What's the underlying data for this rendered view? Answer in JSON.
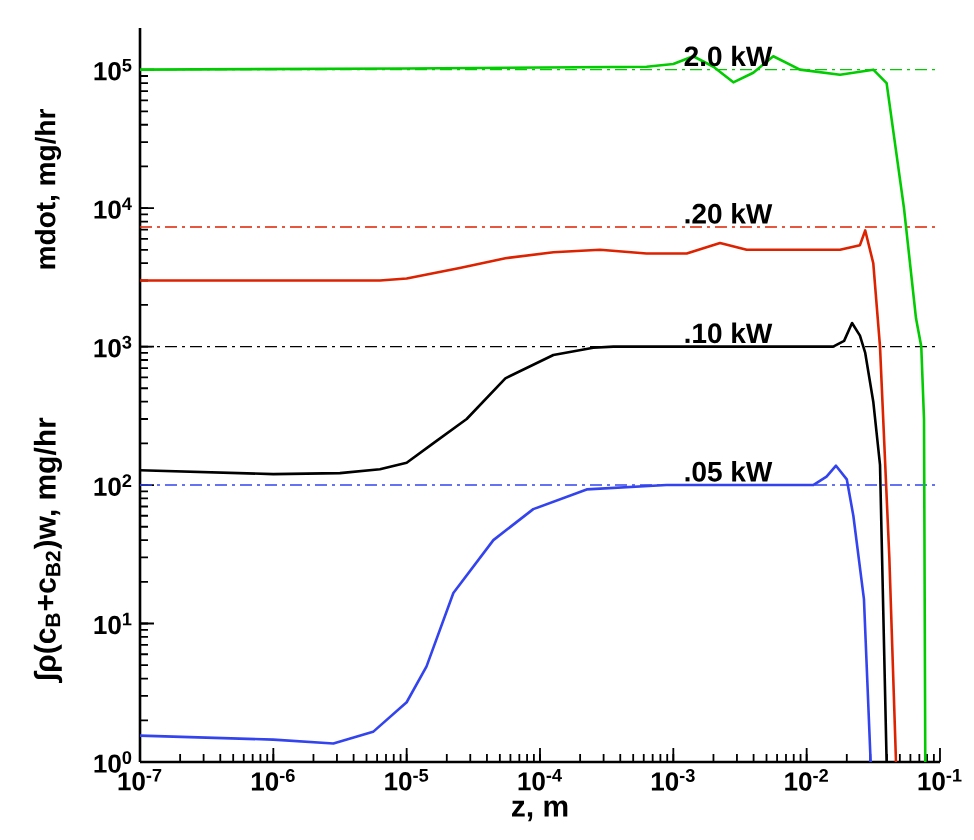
{
  "chart_data": {
    "type": "line",
    "xlabel": "z, m",
    "ylabel": "∫ρ(c$_{B}$+c$_{B2}$)w, mg/hr",
    "annotations": [
      "mdot, mg/hr"
    ],
    "log": "xy",
    "xlim": [
      1e-07,
      0.1
    ],
    "ylim": [
      1,
      200000
    ],
    "xticks": [
      {
        "value": 1e-07,
        "label": "10$^{-7}$"
      },
      {
        "value": 1e-06,
        "label": "10$^{-6}$"
      },
      {
        "value": 1e-05,
        "label": "10$^{-5}$"
      },
      {
        "value": 0.0001,
        "label": "10$^{-4}$"
      },
      {
        "value": 0.001,
        "label": "10$^{-3}$"
      },
      {
        "value": 0.01,
        "label": "10$^{-2}$"
      },
      {
        "value": 0.1,
        "label": "10$^{-1}$"
      }
    ],
    "yticks": [
      {
        "value": 1,
        "label": "10$^{0}$"
      },
      {
        "value": 10,
        "label": "10$^{1}$"
      },
      {
        "value": 100,
        "label": "10$^{2}$"
      },
      {
        "value": 1000,
        "label": "10$^{3}$"
      },
      {
        "value": 10000,
        "label": "10$^{4}$"
      },
      {
        "value": 100000,
        "label": "10$^{5}$"
      }
    ],
    "grid": false,
    "line_style": "solid",
    "series": [
      {
        "name": "2.0 kW",
        "color": "#00cc00",
        "x": [
          1e-07,
          1e-05,
          0.00063,
          0.001,
          0.00141,
          0.002,
          0.00282,
          0.00398,
          0.00562,
          0.00891,
          0.0178,
          0.0316,
          0.0398,
          0.0537,
          0.0661,
          0.0724,
          0.0759,
          0.0776
        ],
        "values": [
          100000,
          102000,
          105000,
          110000,
          125000,
          105000,
          81000,
          95000,
          125000,
          100000,
          92000,
          100000,
          80000,
          10000,
          1600,
          1000,
          300,
          1
        ]
      },
      {
        "name": ".20 kW",
        "color": "#dd2200",
        "x": [
          1e-07,
          6.3e-06,
          1e-05,
          2.5e-05,
          5.5e-05,
          0.000126,
          0.000282,
          0.00063,
          0.00126,
          0.00224,
          0.00355,
          0.0178,
          0.0251,
          0.0275,
          0.0316,
          0.0355,
          0.0417,
          0.0468
        ],
        "values": [
          3000,
          3000,
          3100,
          3700,
          4350,
          4800,
          5000,
          4700,
          4700,
          5600,
          5000,
          5000,
          5400,
          6900,
          4000,
          1000,
          30,
          1
        ]
      },
      {
        "name": ".10 kW",
        "color": "#000000",
        "x": [
          1e-07,
          1e-06,
          3.16e-06,
          6.3e-06,
          1e-05,
          1.58e-05,
          2.82e-05,
          5.5e-05,
          0.000126,
          0.000251,
          0.000355,
          0.0158,
          0.0191,
          0.0219,
          0.0251,
          0.0275,
          0.0316,
          0.0355,
          0.0398
        ],
        "values": [
          128,
          120,
          122,
          130,
          145,
          200,
          300,
          590,
          870,
          980,
          1000,
          1000,
          1100,
          1480,
          1200,
          900,
          400,
          140,
          1
        ]
      },
      {
        "name": ".05 kW",
        "color": "#3344ee",
        "x": [
          1e-07,
          1e-06,
          2.82e-06,
          5.6e-06,
          1e-05,
          1.41e-05,
          2.24e-05,
          4.47e-05,
          8.9e-05,
          0.000224,
          0.00089,
          0.0112,
          0.0141,
          0.0166,
          0.02,
          0.0224,
          0.0269,
          0.0302
        ],
        "values": [
          1.55,
          1.45,
          1.36,
          1.65,
          2.7,
          4.9,
          16.6,
          40,
          67,
          93,
          100,
          100,
          115,
          138,
          110,
          60,
          15,
          1
        ]
      }
    ],
    "ref_lines": [
      {
        "axis": "y",
        "value": 100000,
        "color": "#00cc00",
        "line_style": "dashdot"
      },
      {
        "axis": "y",
        "value": 7300,
        "color": "#dd2200",
        "line_style": "dashdot"
      },
      {
        "axis": "y",
        "value": 1000,
        "color": "#000000",
        "line_style": "dashdot"
      },
      {
        "axis": "y",
        "value": 100,
        "color": "#3344ee",
        "line_style": "dashdot"
      }
    ]
  }
}
